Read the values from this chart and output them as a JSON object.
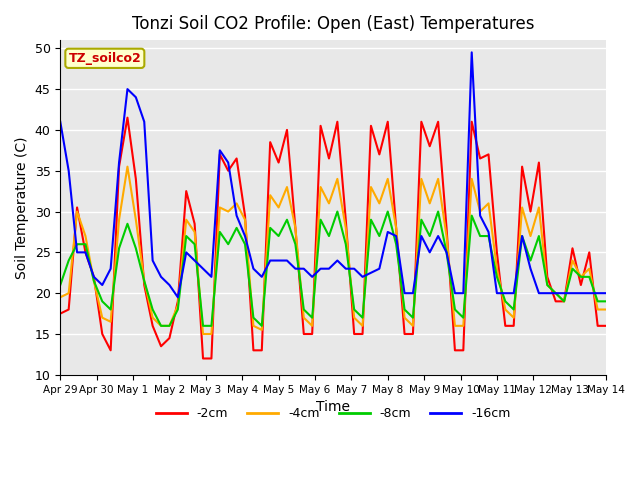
{
  "title": "Tonzi Soil CO2 Profile: Open (East) Temperatures",
  "xlabel": "Time",
  "ylabel": "Soil Temperature (C)",
  "ylim": [
    10,
    51
  ],
  "yticks": [
    10,
    15,
    20,
    25,
    30,
    35,
    40,
    45,
    50
  ],
  "legend_label": "TZ_soilco2",
  "series_labels": [
    "-2cm",
    "-4cm",
    "-8cm",
    "-16cm"
  ],
  "series_colors": [
    "#ff0000",
    "#ffaa00",
    "#00cc00",
    "#0000ff"
  ],
  "background_color": "#e8e8e8",
  "x_tick_labels": [
    "Apr 29",
    "Apr 30",
    "May 1",
    "May 2",
    "May 3",
    "May 4",
    "May 5",
    "May 6",
    "May 7",
    "May 8",
    "May 9",
    "May 10",
    "May 11",
    "May 12",
    "May 13",
    "May 14"
  ],
  "n_days": 15,
  "series": {
    "-2cm": [
      17.5,
      18,
      30.5,
      25,
      22,
      15,
      13,
      35.5,
      41.5,
      34,
      21,
      16,
      13.5,
      14.5,
      19,
      32.5,
      28.5,
      12,
      12,
      37,
      35,
      36.5,
      29.5,
      13,
      13,
      38.5,
      36,
      40,
      28,
      15,
      15,
      40.5,
      36.5,
      41,
      29,
      15,
      15,
      40.5,
      37,
      41,
      28,
      15,
      15,
      41,
      38,
      41,
      28,
      13,
      13,
      41,
      36.5,
      37,
      25,
      16,
      16,
      35.5,
      30,
      36,
      22,
      19,
      19,
      25.5,
      21,
      25,
      16,
      16
    ],
    "-4cm": [
      19.5,
      20,
      30,
      27,
      21.5,
      17,
      16.5,
      29,
      35.5,
      29,
      21.5,
      17,
      16,
      16,
      18.5,
      29,
      27.5,
      15,
      15,
      30.5,
      30,
      31,
      29,
      16,
      15.5,
      32,
      30.5,
      33,
      28,
      17,
      16,
      33,
      31,
      34,
      28,
      17,
      16,
      33,
      31,
      34,
      28,
      17,
      16,
      34,
      31,
      34,
      27,
      16,
      16,
      34,
      30,
      31,
      23,
      18,
      17,
      30.5,
      27,
      30.5,
      21,
      20,
      19,
      24,
      22,
      23,
      18,
      18
    ],
    "-8cm": [
      21,
      24,
      26,
      26,
      21.5,
      19,
      18,
      25.5,
      28.5,
      25.5,
      21.5,
      18,
      16,
      16,
      18,
      27,
      26,
      16,
      16,
      27.5,
      26,
      28,
      26,
      17,
      16,
      28,
      27,
      29,
      26,
      18,
      17,
      29,
      27,
      30,
      26,
      18,
      17,
      29,
      27,
      30,
      26,
      18,
      17,
      29,
      27,
      30,
      25,
      18,
      17,
      29.5,
      27,
      27,
      22,
      19,
      18,
      27,
      24,
      27,
      21,
      20,
      19,
      23,
      22,
      22,
      19,
      19
    ],
    "-16cm": [
      41,
      35,
      25,
      25,
      22,
      21,
      23,
      36,
      45,
      44,
      41,
      24,
      22,
      21,
      19.5,
      25,
      24,
      23,
      22,
      37.5,
      36,
      29.5,
      27,
      23,
      22,
      24,
      24,
      24,
      23,
      23,
      22,
      23,
      23,
      24,
      23,
      23,
      22,
      22.5,
      23,
      27.5,
      27,
      20,
      20,
      27,
      25,
      27,
      25,
      20,
      20,
      49.5,
      29.5,
      27.5,
      20,
      20,
      20,
      27,
      23,
      20,
      20,
      20,
      20,
      20,
      20,
      20,
      20,
      20
    ]
  }
}
